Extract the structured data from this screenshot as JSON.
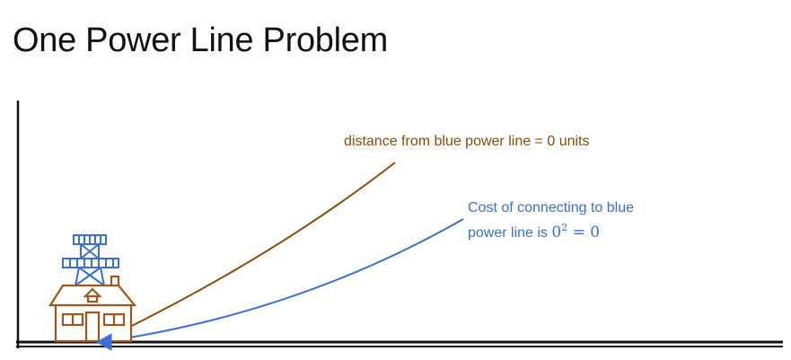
{
  "slide": {
    "title": "One Power Line Problem"
  },
  "labels": {
    "distance_text": "distance from blue power line = 0 units",
    "cost_line1": "Cost of connecting to blue",
    "cost_line2_prefix": "power line is ",
    "cost_formula": "0",
    "cost_exponent": "2",
    "cost_result": " = 0"
  },
  "icons": {
    "house": "house-icon",
    "tower": "power-tower-icon"
  },
  "colors": {
    "distance_curve": "#8a4b08",
    "cost_curve": "#3a6fd8",
    "axes": "#111111",
    "house": "#a0561a",
    "tower": "#3a6fd8"
  }
}
